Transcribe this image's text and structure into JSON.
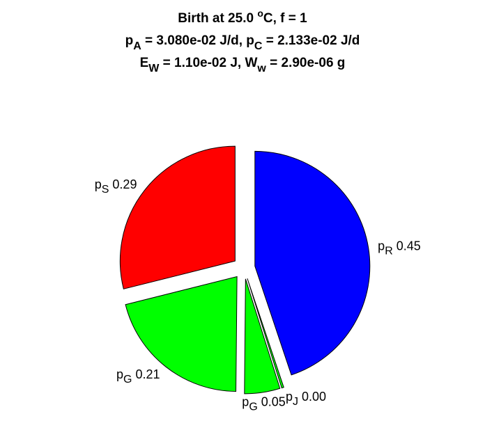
{
  "chart_data": {
    "type": "pie",
    "title": [
      [
        {
          "text": "Birth at 25.0 "
        },
        {
          "text": "o",
          "script": "sup"
        },
        {
          "text": "C, f = 1"
        }
      ],
      [
        {
          "text": "p"
        },
        {
          "text": "A",
          "script": "sub"
        },
        {
          "text": " = 3.080e-02 J/d, p"
        },
        {
          "text": "C",
          "script": "sub"
        },
        {
          "text": " = 2.133e-02 J/d"
        }
      ],
      [
        {
          "text": "E"
        },
        {
          "text": "W",
          "script": "sub"
        },
        {
          "text": " = 1.10e-02 J, W"
        },
        {
          "text": "w",
          "script": "sub"
        },
        {
          "text": " = 2.90e-06 g"
        }
      ]
    ],
    "categories": [
      {
        "main": "p",
        "sub": "R"
      },
      {
        "main": "p",
        "sub": "J"
      },
      {
        "main": "p",
        "sub": "G"
      },
      {
        "main": "p",
        "sub": "G"
      },
      {
        "main": "p",
        "sub": "S"
      }
    ],
    "values": [
      0.45,
      0.003,
      0.05,
      0.21,
      0.29
    ],
    "value_labels": [
      "0.45",
      "0.00",
      "0.05",
      "0.21",
      "0.29"
    ],
    "colors": [
      "#0000ff",
      "#00ff00",
      "#00ff00",
      "#00ff00",
      "#ff0000"
    ],
    "exploded": true
  }
}
